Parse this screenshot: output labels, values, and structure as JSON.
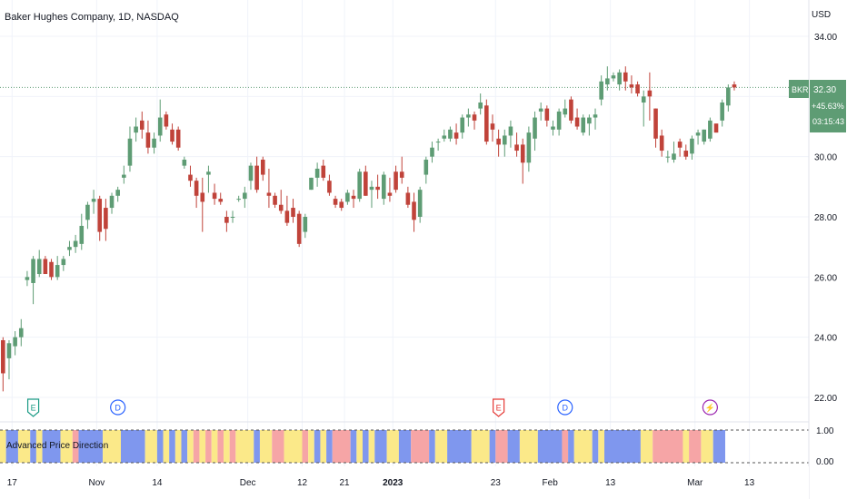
{
  "header": {
    "symbol_title": "Baker Hughes Company, 1D, NASDAQ"
  },
  "price_axis": {
    "currency": "USD"
  },
  "last_price": {
    "ticker": "BKR",
    "price": "32.30",
    "change": "+45.63%",
    "countdown": "03:15:43"
  },
  "indicator": {
    "name": "Advanced Price Direction",
    "scale_top": "1.00",
    "scale_bottom": "0.00"
  },
  "colors": {
    "up": "#5e9c74",
    "down": "#c0433a",
    "grid": "#f0f3fa",
    "axis_text": "#131722",
    "ind_blue": "#7f97ee",
    "ind_yellow": "#fbe989",
    "ind_red": "#f6a5a6",
    "earnings": "#1a9b85",
    "dividend": "#2962ff",
    "split": "#9c27b0",
    "earnings_alt": "#e53935"
  },
  "events": [
    {
      "icon": "earnings-icon",
      "label": "E",
      "date_index": 5,
      "color": "earnings"
    },
    {
      "icon": "dividend-icon",
      "label": "D",
      "date_index": 19,
      "color": "dividend"
    },
    {
      "icon": "earnings-icon",
      "label": "E",
      "date_index": 82,
      "color": "earnings_alt"
    },
    {
      "icon": "dividend-icon",
      "label": "D",
      "date_index": 93,
      "color": "dividend"
    },
    {
      "icon": "split-icon",
      "label": "⚡",
      "date_index": 117,
      "color": "split"
    }
  ],
  "chart_data": {
    "type": "candlestick",
    "title": "Baker Hughes Company, 1D, NASDAQ",
    "xlabel": "",
    "ylabel": "USD",
    "ylim": [
      21.2,
      34.6
    ],
    "y_ticks": [
      "34.00",
      "32.00",
      "30.00",
      "28.00",
      "26.00",
      "24.00",
      "22.00"
    ],
    "x_ticks": [
      {
        "label": "17",
        "index": 2
      },
      {
        "label": "Nov",
        "index": 16
      },
      {
        "label": "14",
        "index": 26
      },
      {
        "label": "Dec",
        "index": 41
      },
      {
        "label": "12",
        "index": 50
      },
      {
        "label": "21",
        "index": 57
      },
      {
        "label": "2023",
        "index": 65
      },
      {
        "label": "23",
        "index": 82
      },
      {
        "label": "Feb",
        "index": 91
      },
      {
        "label": "13",
        "index": 101
      },
      {
        "label": "Mar",
        "index": 115
      },
      {
        "label": "13",
        "index": 124
      }
    ],
    "gridlines": true,
    "ohlc": [
      [
        23.9,
        24.0,
        22.2,
        22.8
      ],
      [
        23.3,
        23.9,
        22.6,
        23.8
      ],
      [
        23.7,
        24.2,
        23.4,
        24.0
      ],
      [
        24.0,
        24.6,
        23.7,
        24.3
      ],
      [
        25.9,
        26.2,
        25.7,
        26.0
      ],
      [
        25.8,
        26.7,
        25.1,
        26.6
      ],
      [
        26.1,
        26.9,
        26.0,
        26.6
      ],
      [
        26.6,
        26.7,
        26.1,
        26.1
      ],
      [
        26.5,
        26.6,
        25.9,
        26.0
      ],
      [
        26.0,
        26.7,
        25.9,
        26.4
      ],
      [
        26.4,
        26.7,
        26.2,
        26.6
      ],
      [
        26.9,
        27.2,
        26.7,
        27.0
      ],
      [
        27.0,
        27.4,
        26.8,
        27.2
      ],
      [
        27.1,
        28.1,
        26.9,
        27.7
      ],
      [
        27.9,
        28.5,
        27.6,
        28.4
      ],
      [
        28.5,
        28.9,
        28.1,
        28.6
      ],
      [
        28.6,
        28.7,
        27.2,
        27.5
      ],
      [
        28.3,
        28.6,
        27.2,
        27.6
      ],
      [
        28.3,
        28.8,
        28.1,
        28.7
      ],
      [
        28.7,
        29.0,
        28.5,
        28.9
      ],
      [
        29.3,
        29.7,
        29.1,
        29.4
      ],
      [
        29.7,
        31.0,
        29.5,
        30.6
      ],
      [
        30.8,
        31.3,
        30.5,
        31.0
      ],
      [
        31.2,
        31.5,
        30.6,
        30.9
      ],
      [
        30.8,
        31.2,
        30.1,
        30.3
      ],
      [
        30.3,
        30.8,
        30.1,
        30.6
      ],
      [
        30.7,
        31.9,
        30.5,
        31.3
      ],
      [
        31.4,
        31.5,
        30.9,
        31.0
      ],
      [
        30.9,
        31.1,
        30.4,
        30.5
      ],
      [
        30.9,
        31.0,
        30.2,
        30.3
      ],
      [
        29.7,
        30.0,
        29.6,
        29.9
      ],
      [
        29.4,
        29.7,
        29.0,
        29.2
      ],
      [
        29.2,
        29.3,
        28.3,
        28.7
      ],
      [
        28.8,
        29.3,
        27.5,
        28.5
      ],
      [
        29.4,
        29.7,
        28.8,
        29.5
      ],
      [
        28.8,
        29.1,
        28.4,
        28.6
      ],
      [
        28.6,
        28.8,
        28.4,
        28.5
      ],
      [
        28.0,
        28.2,
        27.5,
        27.8
      ],
      [
        28.0,
        28.2,
        27.8,
        28.0
      ],
      [
        28.6,
        28.7,
        28.5,
        28.6
      ],
      [
        28.6,
        29.0,
        28.3,
        28.8
      ],
      [
        29.2,
        29.8,
        28.9,
        29.7
      ],
      [
        29.7,
        30.0,
        28.8,
        28.9
      ],
      [
        29.9,
        30.0,
        29.2,
        29.4
      ],
      [
        28.8,
        29.6,
        28.3,
        28.7
      ],
      [
        28.7,
        28.8,
        28.3,
        28.4
      ],
      [
        28.4,
        28.9,
        28.1,
        28.2
      ],
      [
        28.2,
        28.7,
        27.7,
        27.8
      ],
      [
        28.3,
        28.6,
        27.8,
        28.0
      ],
      [
        28.1,
        28.2,
        27.0,
        27.1
      ],
      [
        27.5,
        28.1,
        27.3,
        28.0
      ],
      [
        28.9,
        29.3,
        28.9,
        29.3
      ],
      [
        29.3,
        29.8,
        29.0,
        29.6
      ],
      [
        29.7,
        29.9,
        29.2,
        29.3
      ],
      [
        29.2,
        29.4,
        28.7,
        28.8
      ],
      [
        28.6,
        28.7,
        28.3,
        28.4
      ],
      [
        28.5,
        28.6,
        28.2,
        28.3
      ],
      [
        28.5,
        28.9,
        28.4,
        28.8
      ],
      [
        28.7,
        28.9,
        28.3,
        28.6
      ],
      [
        28.6,
        29.6,
        28.5,
        29.5
      ],
      [
        29.5,
        29.7,
        28.7,
        28.7
      ],
      [
        28.9,
        29.2,
        28.3,
        29.0
      ],
      [
        29.0,
        29.4,
        28.6,
        28.9
      ],
      [
        28.6,
        29.5,
        28.4,
        29.4
      ],
      [
        28.8,
        29.3,
        28.5,
        28.7
      ],
      [
        29.5,
        29.7,
        28.8,
        28.9
      ],
      [
        29.5,
        30.0,
        29.1,
        29.3
      ],
      [
        28.8,
        29.0,
        28.3,
        28.4
      ],
      [
        28.5,
        28.8,
        27.5,
        27.9
      ],
      [
        28.0,
        29.0,
        27.8,
        28.9
      ],
      [
        29.4,
        30.0,
        29.1,
        29.9
      ],
      [
        30.0,
        30.5,
        29.8,
        30.3
      ],
      [
        30.5,
        30.6,
        30.2,
        30.5
      ],
      [
        30.6,
        30.9,
        30.5,
        30.7
      ],
      [
        30.6,
        31.0,
        30.5,
        30.9
      ],
      [
        30.8,
        31.1,
        30.4,
        30.6
      ],
      [
        30.8,
        31.4,
        30.6,
        31.3
      ],
      [
        31.3,
        31.6,
        31.0,
        31.4
      ],
      [
        31.4,
        31.5,
        30.9,
        31.2
      ],
      [
        31.6,
        32.1,
        31.4,
        31.8
      ],
      [
        31.7,
        31.9,
        30.4,
        30.5
      ],
      [
        31.1,
        31.4,
        30.5,
        30.9
      ],
      [
        30.6,
        30.9,
        30.0,
        30.4
      ],
      [
        30.4,
        30.9,
        30.0,
        30.7
      ],
      [
        30.7,
        31.2,
        30.3,
        31.0
      ],
      [
        30.4,
        30.8,
        30.0,
        30.2
      ],
      [
        30.4,
        30.6,
        29.1,
        29.8
      ],
      [
        29.8,
        31.0,
        29.5,
        30.8
      ],
      [
        30.6,
        31.5,
        30.2,
        31.3
      ],
      [
        31.5,
        31.8,
        31.2,
        31.6
      ],
      [
        31.6,
        31.7,
        31.0,
        31.2
      ],
      [
        30.9,
        31.2,
        30.7,
        31.0
      ],
      [
        30.9,
        31.6,
        30.7,
        31.5
      ],
      [
        31.4,
        31.9,
        31.3,
        31.6
      ],
      [
        31.9,
        32.0,
        31.1,
        31.2
      ],
      [
        31.3,
        31.6,
        30.9,
        31.0
      ],
      [
        30.8,
        31.4,
        30.7,
        31.3
      ],
      [
        31.1,
        31.4,
        30.7,
        31.3
      ],
      [
        31.3,
        31.6,
        30.9,
        31.4
      ],
      [
        31.9,
        32.7,
        31.7,
        32.5
      ],
      [
        32.4,
        33.0,
        32.2,
        32.6
      ],
      [
        32.6,
        32.8,
        32.5,
        32.7
      ],
      [
        32.4,
        32.9,
        32.2,
        32.8
      ],
      [
        32.8,
        33.0,
        32.2,
        32.5
      ],
      [
        32.4,
        32.7,
        32.1,
        32.3
      ],
      [
        32.4,
        32.5,
        32.0,
        32.1
      ],
      [
        31.8,
        32.2,
        31.0,
        32.0
      ],
      [
        32.2,
        32.8,
        31.2,
        32.0
      ],
      [
        31.6,
        31.6,
        30.3,
        30.6
      ],
      [
        30.7,
        30.9,
        30.0,
        30.2
      ],
      [
        30.0,
        30.2,
        29.8,
        30.0
      ],
      [
        29.9,
        30.5,
        29.8,
        30.1
      ],
      [
        30.5,
        30.6,
        30.0,
        30.3
      ],
      [
        30.2,
        30.4,
        29.9,
        30.0
      ],
      [
        30.1,
        30.7,
        29.9,
        30.6
      ],
      [
        30.7,
        30.9,
        30.4,
        30.8
      ],
      [
        30.5,
        30.9,
        30.4,
        30.9
      ],
      [
        30.6,
        31.3,
        30.5,
        31.2
      ],
      [
        31.1,
        31.1,
        30.8,
        30.8
      ],
      [
        31.2,
        31.9,
        31.0,
        31.8
      ],
      [
        31.7,
        32.4,
        31.5,
        32.3
      ],
      [
        32.4,
        32.5,
        32.2,
        32.3
      ]
    ],
    "indicator_segments": [
      {
        "start": 0,
        "end": 1,
        "color": "yellow"
      },
      {
        "start": 1,
        "end": 3,
        "color": "blue"
      },
      {
        "start": 3,
        "end": 5,
        "color": "yellow"
      },
      {
        "start": 5,
        "end": 6,
        "color": "blue"
      },
      {
        "start": 6,
        "end": 7,
        "color": "yellow"
      },
      {
        "start": 7,
        "end": 10,
        "color": "blue"
      },
      {
        "start": 10,
        "end": 12,
        "color": "yellow"
      },
      {
        "start": 12,
        "end": 13,
        "color": "red"
      },
      {
        "start": 13,
        "end": 17,
        "color": "blue"
      },
      {
        "start": 17,
        "end": 20,
        "color": "yellow"
      },
      {
        "start": 20,
        "end": 24,
        "color": "blue"
      },
      {
        "start": 24,
        "end": 26,
        "color": "yellow"
      },
      {
        "start": 26,
        "end": 27,
        "color": "blue"
      },
      {
        "start": 27,
        "end": 28,
        "color": "yellow"
      },
      {
        "start": 28,
        "end": 29,
        "color": "blue"
      },
      {
        "start": 29,
        "end": 30,
        "color": "yellow"
      },
      {
        "start": 30,
        "end": 31,
        "color": "blue"
      },
      {
        "start": 31,
        "end": 32,
        "color": "yellow"
      },
      {
        "start": 32,
        "end": 33,
        "color": "red"
      },
      {
        "start": 33,
        "end": 34,
        "color": "yellow"
      },
      {
        "start": 34,
        "end": 35,
        "color": "red"
      },
      {
        "start": 35,
        "end": 36,
        "color": "yellow"
      },
      {
        "start": 36,
        "end": 37,
        "color": "red"
      },
      {
        "start": 37,
        "end": 38,
        "color": "yellow"
      },
      {
        "start": 38,
        "end": 39,
        "color": "red"
      },
      {
        "start": 39,
        "end": 42,
        "color": "yellow"
      },
      {
        "start": 42,
        "end": 43,
        "color": "blue"
      },
      {
        "start": 43,
        "end": 45,
        "color": "yellow"
      },
      {
        "start": 45,
        "end": 47,
        "color": "red"
      },
      {
        "start": 47,
        "end": 50,
        "color": "yellow"
      },
      {
        "start": 50,
        "end": 51,
        "color": "red"
      },
      {
        "start": 51,
        "end": 52,
        "color": "yellow"
      },
      {
        "start": 52,
        "end": 53,
        "color": "blue"
      },
      {
        "start": 53,
        "end": 54,
        "color": "yellow"
      },
      {
        "start": 54,
        "end": 55,
        "color": "blue"
      },
      {
        "start": 55,
        "end": 58,
        "color": "red"
      },
      {
        "start": 58,
        "end": 59,
        "color": "blue"
      },
      {
        "start": 59,
        "end": 60,
        "color": "yellow"
      },
      {
        "start": 60,
        "end": 61,
        "color": "blue"
      },
      {
        "start": 61,
        "end": 62,
        "color": "yellow"
      },
      {
        "start": 62,
        "end": 64,
        "color": "blue"
      },
      {
        "start": 64,
        "end": 66,
        "color": "yellow"
      },
      {
        "start": 66,
        "end": 68,
        "color": "blue"
      },
      {
        "start": 68,
        "end": 71,
        "color": "red"
      },
      {
        "start": 71,
        "end": 72,
        "color": "blue"
      },
      {
        "start": 72,
        "end": 74,
        "color": "yellow"
      },
      {
        "start": 74,
        "end": 78,
        "color": "blue"
      },
      {
        "start": 78,
        "end": 81,
        "color": "yellow"
      },
      {
        "start": 81,
        "end": 82,
        "color": "blue"
      },
      {
        "start": 82,
        "end": 84,
        "color": "red"
      },
      {
        "start": 84,
        "end": 86,
        "color": "blue"
      },
      {
        "start": 86,
        "end": 89,
        "color": "yellow"
      },
      {
        "start": 89,
        "end": 93,
        "color": "blue"
      },
      {
        "start": 93,
        "end": 94,
        "color": "red"
      },
      {
        "start": 94,
        "end": 95,
        "color": "blue"
      },
      {
        "start": 95,
        "end": 98,
        "color": "yellow"
      },
      {
        "start": 98,
        "end": 99,
        "color": "blue"
      },
      {
        "start": 99,
        "end": 100,
        "color": "yellow"
      },
      {
        "start": 100,
        "end": 106,
        "color": "blue"
      },
      {
        "start": 106,
        "end": 108,
        "color": "yellow"
      },
      {
        "start": 108,
        "end": 113,
        "color": "red"
      },
      {
        "start": 113,
        "end": 114,
        "color": "yellow"
      },
      {
        "start": 114,
        "end": 116,
        "color": "red"
      },
      {
        "start": 116,
        "end": 118,
        "color": "yellow"
      },
      {
        "start": 118,
        "end": 120,
        "color": "blue"
      }
    ]
  }
}
